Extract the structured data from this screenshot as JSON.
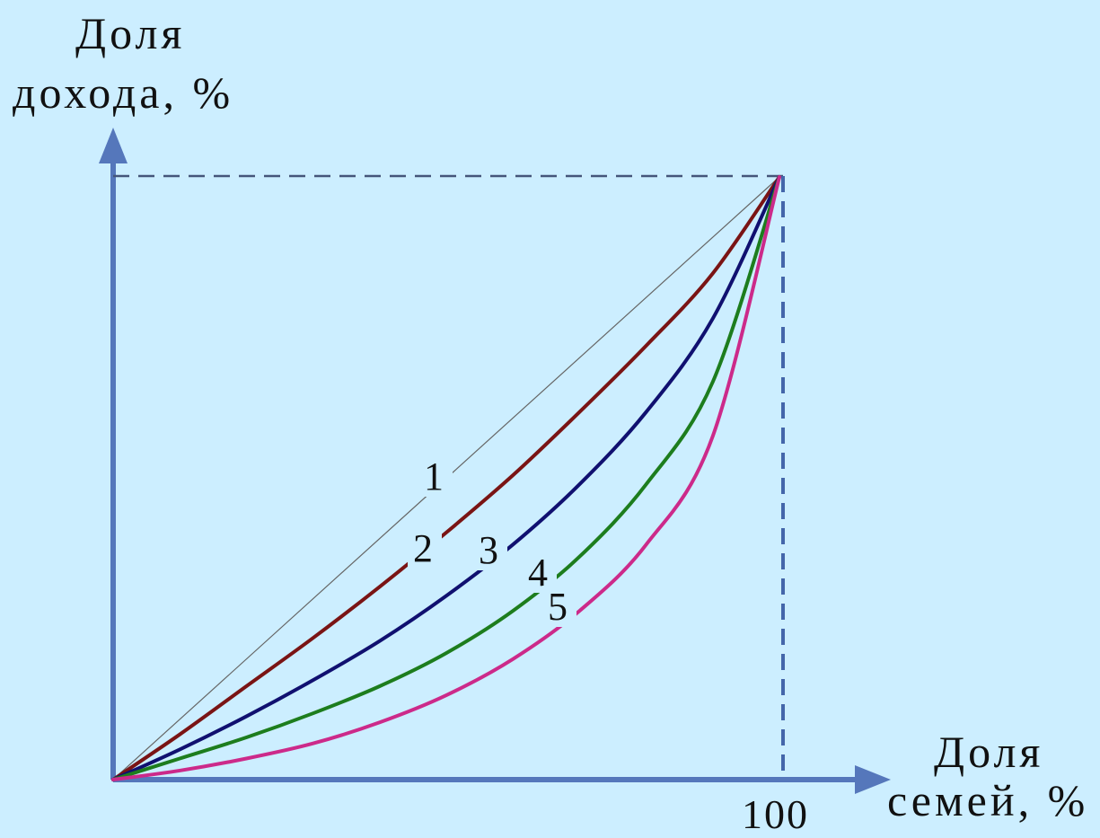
{
  "chart_data": {
    "type": "line",
    "ylabel_line1": "Доля",
    "ylabel_line2": "дохода, %",
    "xlabel_line1": "Доля",
    "xlabel_line2": "семей, %",
    "xlim": [
      0,
      100
    ],
    "ylim": [
      0,
      100
    ],
    "x_tick_labels": [
      "100"
    ],
    "grid": false,
    "series": [
      {
        "label": "1",
        "color": "#666666",
        "style": "thin-solid",
        "points": [
          [
            0,
            0
          ],
          [
            100,
            100
          ]
        ]
      },
      {
        "label": "2",
        "color": "#7a1414",
        "points": [
          [
            0,
            0
          ],
          [
            10,
            7.5
          ],
          [
            20,
            15.5
          ],
          [
            30,
            23.5
          ],
          [
            40,
            32
          ],
          [
            50,
            41
          ],
          [
            60,
            50.5
          ],
          [
            70,
            61
          ],
          [
            80,
            72
          ],
          [
            90,
            84
          ],
          [
            100,
            100
          ]
        ]
      },
      {
        "label": "3",
        "color": "#101070",
        "points": [
          [
            0,
            0
          ],
          [
            10,
            5
          ],
          [
            20,
            10.5
          ],
          [
            30,
            16.5
          ],
          [
            40,
            23
          ],
          [
            50,
            30.5
          ],
          [
            60,
            39
          ],
          [
            70,
            49
          ],
          [
            80,
            61
          ],
          [
            90,
            76.5
          ],
          [
            100,
            100
          ]
        ]
      },
      {
        "label": "4",
        "color": "#1d7d1d",
        "points": [
          [
            0,
            0
          ],
          [
            10,
            3.5
          ],
          [
            20,
            7
          ],
          [
            30,
            11
          ],
          [
            40,
            15.5
          ],
          [
            50,
            21
          ],
          [
            60,
            28
          ],
          [
            70,
            37
          ],
          [
            80,
            49
          ],
          [
            90,
            66
          ],
          [
            100,
            100
          ]
        ]
      },
      {
        "label": "5",
        "color": "#cc2a8a",
        "points": [
          [
            0,
            0
          ],
          [
            10,
            1.5
          ],
          [
            20,
            3.5
          ],
          [
            30,
            6
          ],
          [
            40,
            9.5
          ],
          [
            50,
            14
          ],
          [
            60,
            20
          ],
          [
            70,
            28
          ],
          [
            80,
            39
          ],
          [
            90,
            57
          ],
          [
            100,
            100
          ]
        ]
      }
    ]
  }
}
